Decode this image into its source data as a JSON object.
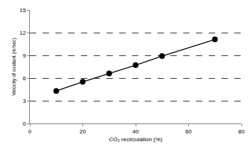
{
  "chart_data": {
    "type": "line",
    "x_label": "CO₂ recirculation (%)",
    "y_label": "Velocity of oxidant (m/sec)",
    "x": [
      10,
      20,
      30,
      40,
      50,
      70
    ],
    "values": [
      4.3,
      5.5,
      6.6,
      7.7,
      8.9,
      11.1
    ],
    "color": "#000000",
    "marker": "circle",
    "line_style": "solid",
    "xlim": [
      0,
      80
    ],
    "xticks": [
      0,
      20,
      40,
      60,
      80
    ],
    "ylim": [
      0,
      15
    ],
    "yticks": [
      0,
      3,
      6,
      9,
      12,
      15
    ],
    "grid": true
  }
}
